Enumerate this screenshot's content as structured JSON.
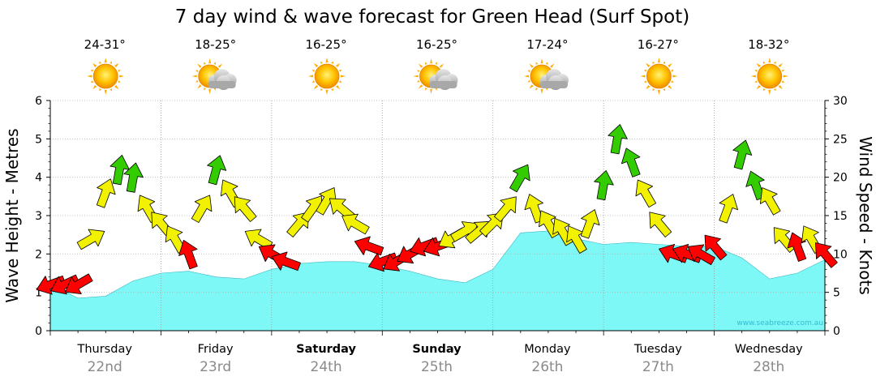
{
  "chart_data": {
    "type": "area",
    "title": "7 day wind & wave forecast for Green Head (Surf Spot)",
    "ylabel_left": "Wave Height - Metres",
    "ylabel_right": "Wind Speed - Knots",
    "ylim_left": [
      0,
      6
    ],
    "ylim_right": [
      0,
      30
    ],
    "left_ticks": [
      "0",
      "1",
      "2",
      "3",
      "4",
      "5",
      "6"
    ],
    "right_ticks": [
      "0",
      "5",
      "10",
      "15",
      "20",
      "25",
      "30"
    ],
    "credit": "www.seabreeze.com.au",
    "days": [
      {
        "name": "Thursday",
        "date": "22nd",
        "temp": "24-31°",
        "icon": "sun-icon",
        "bold": false
      },
      {
        "name": "Friday",
        "date": "23rd",
        "temp": "18-25°",
        "icon": "sun-cloud-icon",
        "bold": false
      },
      {
        "name": "Saturday",
        "date": "24th",
        "temp": "16-25°",
        "icon": "sun-icon",
        "bold": true
      },
      {
        "name": "Sunday",
        "date": "25th",
        "temp": "16-25°",
        "icon": "sun-cloud-icon",
        "bold": true
      },
      {
        "name": "Monday",
        "date": "26th",
        "temp": "17-24°",
        "icon": "sun-cloud-icon",
        "bold": false
      },
      {
        "name": "Tuesday",
        "date": "27th",
        "temp": "16-27°",
        "icon": "sun-icon",
        "bold": false
      },
      {
        "name": "Wednesday",
        "date": "28th",
        "temp": "18-32°",
        "icon": "sun-icon",
        "bold": false
      }
    ],
    "wave_height_m": {
      "x_hours": [
        0,
        6,
        12,
        18,
        24,
        30,
        36,
        42,
        48,
        54,
        60,
        66,
        72,
        78,
        84,
        90,
        96,
        102,
        108,
        114,
        120,
        126,
        132,
        138,
        144,
        150,
        156,
        162,
        168
      ],
      "values": [
        1.2,
        0.85,
        0.9,
        1.3,
        1.5,
        1.55,
        1.4,
        1.35,
        1.6,
        1.75,
        1.8,
        1.8,
        1.7,
        1.55,
        1.35,
        1.25,
        1.6,
        2.55,
        2.6,
        2.4,
        2.25,
        2.3,
        2.25,
        2.2,
        2.2,
        1.9,
        1.35,
        1.5,
        1.85
      ]
    },
    "colors": {
      "swell": "#7ef7f7",
      "swell_edge": "#3fb8c4",
      "strong": "#33cc00",
      "moderate": "#f2f200",
      "light": "#ff0000"
    },
    "wind": {
      "x_hours": [
        0,
        3,
        6,
        9,
        12,
        15,
        18,
        21,
        24,
        27,
        30,
        33,
        36,
        39,
        42,
        45,
        48,
        51,
        54,
        57,
        60,
        63,
        66,
        69,
        72,
        75,
        78,
        81,
        84,
        87,
        90,
        93,
        96,
        99,
        102,
        105,
        108,
        111,
        114,
        117,
        120,
        123,
        126,
        129,
        132,
        135,
        138,
        141,
        144,
        147,
        150,
        153,
        156,
        159,
        162,
        165,
        168
      ],
      "speed_kn": [
        6,
        6,
        6,
        12,
        18,
        21,
        20,
        16,
        14,
        12,
        10,
        16,
        21,
        18,
        16,
        12,
        10,
        9,
        14,
        16,
        17,
        16,
        14,
        11,
        9,
        9,
        10,
        11,
        11,
        12,
        13,
        13,
        14,
        16,
        20,
        16,
        14,
        13,
        12,
        14,
        19,
        25,
        22,
        18,
        14,
        10,
        10,
        10,
        11,
        16,
        23,
        19,
        17,
        12,
        11,
        12,
        10
      ],
      "dir_deg": [
        250,
        245,
        240,
        60,
        20,
        10,
        10,
        330,
        320,
        330,
        340,
        30,
        15,
        330,
        320,
        300,
        300,
        290,
        40,
        35,
        30,
        310,
        300,
        290,
        250,
        240,
        240,
        250,
        250,
        240,
        60,
        50,
        45,
        40,
        30,
        340,
        330,
        330,
        330,
        20,
        10,
        10,
        340,
        330,
        320,
        290,
        290,
        300,
        320,
        20,
        15,
        340,
        330,
        320,
        340,
        330,
        320
      ]
    }
  }
}
